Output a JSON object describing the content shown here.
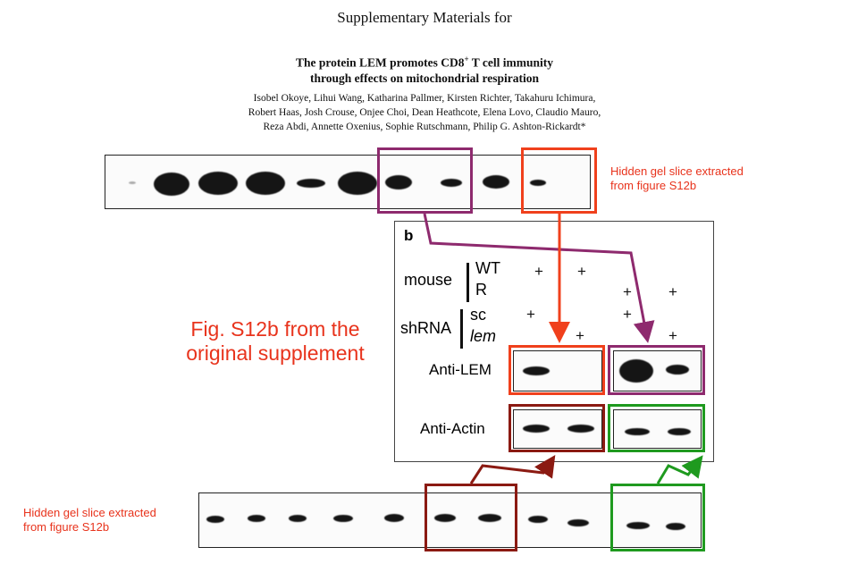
{
  "paper": {
    "heading": "Supplementary Materials for",
    "title_line1_pre": "The protein LEM promotes CD8",
    "title_sup": "+",
    "title_line1_post": " T cell immunity",
    "title_line2": "through effects on mitochondrial respiration",
    "authors_line1": "Isobel Okoye, Lihui Wang, Katharina Pallmer, Kirsten Richter, Takahuru Ichimura,",
    "authors_line2": "Robert Haas, Josh Crouse, Onjee Choi, Dean Heathcote, Elena Lovo, Claudio Mauro,",
    "authors_line3": "Reza Abdi, Annette Oxenius, Sophie Rutschmann, Philip G. Ashton-Rickardt*"
  },
  "annotations": {
    "top_note_line1": "Hidden gel slice extracted",
    "top_note_line2": "from figure S12b",
    "bottom_note_line1": "Hidden gel slice extracted",
    "bottom_note_line2": "from figure S12b",
    "figure_note_line1": "Fig. S12b from the",
    "figure_note_line2": "original supplement"
  },
  "figure": {
    "panel_label": "b",
    "mouse_label": "mouse",
    "genotype_wt": "WT",
    "genotype_r": "R",
    "shrna_label": "shRNA",
    "shrna_sc": "sc",
    "shrna_lem": "lem",
    "plus_sign": "+",
    "anti_lem_label": "Anti-LEM",
    "anti_actin_label": "Anti-Actin"
  },
  "colors": {
    "annotation_red": "#e8331c",
    "purple_box": "#8e2a6e",
    "red_box": "#f0401c",
    "dark_red_box": "#8b1a12",
    "green_box": "#1f9a1f"
  }
}
